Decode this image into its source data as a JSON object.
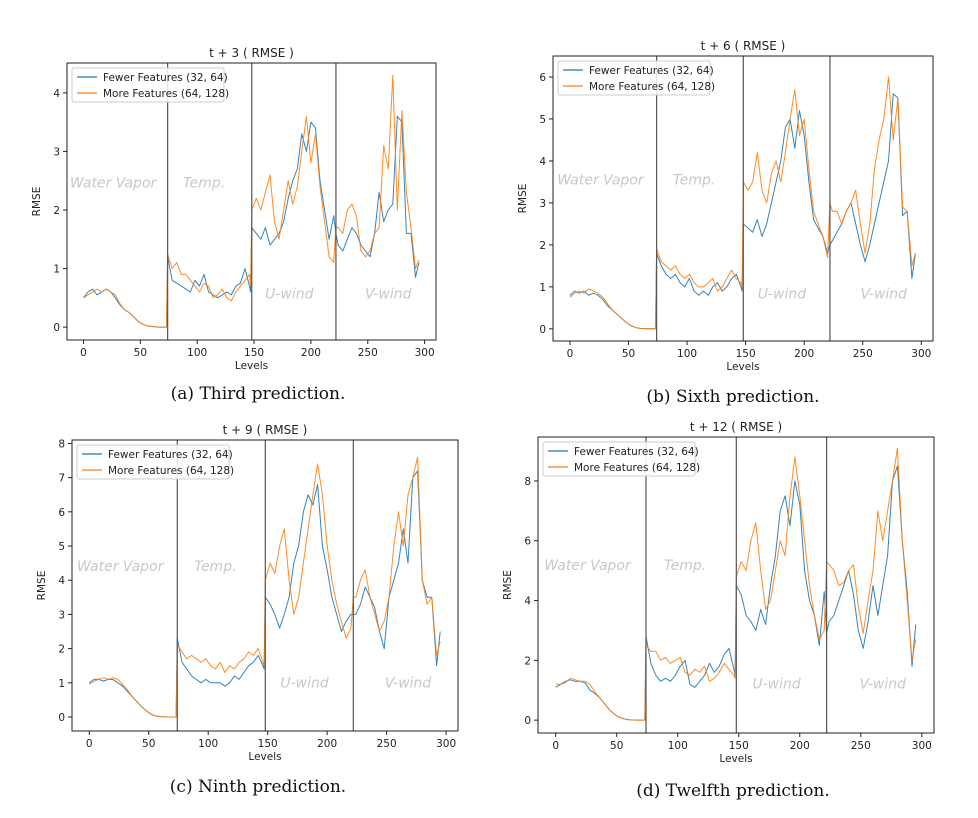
{
  "colors": {
    "fewer": "#1f77b4",
    "more": "#ff7f0e",
    "divider": "#555555",
    "region_label": "#c8c8c8"
  },
  "chart_data": [
    {
      "type": "line",
      "title": "t + 3 ( RMSE )",
      "caption": "(a) Third prediction.",
      "xlabel": "Levels",
      "ylabel": "RMSE",
      "xlim": [
        -14.5,
        310
      ],
      "ylim": [
        -0.22,
        4.51
      ],
      "xticks": [
        0,
        50,
        100,
        150,
        200,
        250,
        300
      ],
      "yticks": [
        0,
        1,
        2,
        3,
        4
      ],
      "grid": false,
      "legend_position": "top-left",
      "dividers": [
        74,
        148,
        222
      ],
      "regions": [
        {
          "label": "Water Vapor",
          "x": 26,
          "row": "upper"
        },
        {
          "label": "Temp.",
          "x": 106,
          "row": "upper"
        },
        {
          "label": "U-wind",
          "x": 181,
          "row": "lower"
        },
        {
          "label": "V-wind",
          "x": 268,
          "row": "lower"
        }
      ],
      "x": [
        0,
        4,
        8,
        12,
        16,
        20,
        24,
        28,
        32,
        36,
        40,
        44,
        48,
        52,
        56,
        60,
        66,
        73,
        74,
        78,
        82,
        86,
        90,
        94,
        98,
        102,
        106,
        110,
        114,
        118,
        122,
        126,
        130,
        134,
        138,
        142,
        146,
        147,
        148,
        152,
        156,
        160,
        164,
        168,
        172,
        176,
        180,
        184,
        188,
        192,
        196,
        200,
        204,
        208,
        212,
        216,
        220,
        222,
        224,
        228,
        232,
        236,
        240,
        244,
        248,
        252,
        256,
        260,
        264,
        268,
        272,
        276,
        280,
        284,
        288,
        292,
        295
      ],
      "series": [
        {
          "name": "Fewer Features (32, 64)",
          "color": "#1f77b4",
          "values": [
            0.5,
            0.6,
            0.65,
            0.55,
            0.6,
            0.65,
            0.6,
            0.5,
            0.38,
            0.3,
            0.25,
            0.18,
            0.1,
            0.05,
            0.02,
            0.01,
            0,
            0,
            1.2,
            0.8,
            0.75,
            0.7,
            0.65,
            0.6,
            0.8,
            0.7,
            0.9,
            0.6,
            0.55,
            0.5,
            0.55,
            0.6,
            0.55,
            0.7,
            0.75,
            1.0,
            0.7,
            0.6,
            1.7,
            1.6,
            1.5,
            1.7,
            1.4,
            1.5,
            1.6,
            1.8,
            2.2,
            2.5,
            2.7,
            3.3,
            3.0,
            3.5,
            3.4,
            2.5,
            2.0,
            1.5,
            1.9,
            1.6,
            1.4,
            1.3,
            1.5,
            1.7,
            1.6,
            1.4,
            1.3,
            1.2,
            1.6,
            2.3,
            1.8,
            2.0,
            2.1,
            3.6,
            3.5,
            1.6,
            1.6,
            0.85,
            1.1
          ]
        },
        {
          "name": "More Features (64, 128)",
          "color": "#ff7f0e",
          "values": [
            0.5,
            0.55,
            0.6,
            0.65,
            0.6,
            0.65,
            0.6,
            0.55,
            0.4,
            0.3,
            0.25,
            0.18,
            0.1,
            0.05,
            0.02,
            0.01,
            0,
            0,
            1.25,
            1.0,
            1.1,
            0.9,
            0.9,
            0.8,
            0.7,
            0.6,
            0.75,
            0.7,
            0.5,
            0.55,
            0.65,
            0.5,
            0.45,
            0.6,
            0.7,
            0.8,
            0.9,
            0.7,
            2.0,
            2.2,
            2.0,
            2.3,
            2.6,
            1.8,
            1.5,
            2.0,
            2.5,
            2.1,
            2.4,
            3.0,
            3.6,
            2.8,
            3.3,
            2.4,
            1.8,
            1.2,
            1.1,
            1.7,
            1.7,
            1.6,
            2.0,
            2.1,
            1.9,
            1.3,
            1.2,
            1.3,
            1.6,
            1.7,
            3.1,
            2.7,
            4.3,
            2.0,
            3.7,
            2.3,
            1.7,
            1.0,
            1.15
          ]
        }
      ]
    },
    {
      "type": "line",
      "title": "t + 6 ( RMSE )",
      "caption": "(b) Sixth prediction.",
      "xlabel": "Levels",
      "ylabel": "RMSE",
      "xlim": [
        -14.5,
        310
      ],
      "ylim": [
        -0.29,
        6.5
      ],
      "xticks": [
        0,
        50,
        100,
        150,
        200,
        250,
        300
      ],
      "yticks": [
        0,
        1,
        2,
        3,
        4,
        5,
        6
      ],
      "grid": false,
      "legend_position": "top-left",
      "dividers": [
        74,
        148,
        222
      ],
      "regions": [
        {
          "label": "Water Vapor",
          "x": 26,
          "row": "upper"
        },
        {
          "label": "Temp.",
          "x": 106,
          "row": "upper"
        },
        {
          "label": "U-wind",
          "x": 181,
          "row": "lower"
        },
        {
          "label": "V-wind",
          "x": 268,
          "row": "lower"
        }
      ],
      "x": [
        0,
        4,
        8,
        12,
        16,
        20,
        24,
        28,
        32,
        36,
        40,
        44,
        48,
        52,
        56,
        60,
        66,
        73,
        74,
        78,
        82,
        86,
        90,
        94,
        98,
        102,
        106,
        110,
        114,
        118,
        122,
        126,
        130,
        134,
        138,
        142,
        146,
        147,
        148,
        152,
        156,
        160,
        164,
        168,
        172,
        176,
        180,
        184,
        188,
        192,
        196,
        200,
        204,
        208,
        212,
        216,
        220,
        222,
        224,
        228,
        232,
        236,
        240,
        244,
        248,
        252,
        256,
        260,
        264,
        268,
        272,
        276,
        280,
        284,
        288,
        292,
        295
      ],
      "series": [
        {
          "name": "Fewer Features (32, 64)",
          "color": "#1f77b4",
          "values": [
            0.8,
            0.9,
            0.85,
            0.9,
            0.8,
            0.85,
            0.8,
            0.7,
            0.55,
            0.45,
            0.35,
            0.25,
            0.15,
            0.08,
            0.03,
            0.01,
            0,
            0,
            1.8,
            1.5,
            1.3,
            1.2,
            1.3,
            1.1,
            1.0,
            1.2,
            0.9,
            0.8,
            0.9,
            0.8,
            1.0,
            1.1,
            0.9,
            1.0,
            1.2,
            1.3,
            1.0,
            0.9,
            2.5,
            2.4,
            2.3,
            2.6,
            2.2,
            2.5,
            3.0,
            3.5,
            4.0,
            4.8,
            5.0,
            4.3,
            5.2,
            4.6,
            3.5,
            2.6,
            2.4,
            2.2,
            1.8,
            2.0,
            2.1,
            2.3,
            2.5,
            2.8,
            3.0,
            2.5,
            2.0,
            1.6,
            2.0,
            2.5,
            3.0,
            3.5,
            4.0,
            5.6,
            5.5,
            2.7,
            2.8,
            1.2,
            1.8
          ]
        },
        {
          "name": "More Features (64, 128)",
          "color": "#ff7f0e",
          "values": [
            0.75,
            0.85,
            0.9,
            0.85,
            0.95,
            0.9,
            0.85,
            0.75,
            0.6,
            0.45,
            0.35,
            0.25,
            0.15,
            0.08,
            0.03,
            0.01,
            0,
            0,
            1.9,
            1.6,
            1.5,
            1.4,
            1.5,
            1.3,
            1.2,
            1.3,
            1.1,
            1.0,
            1.0,
            1.1,
            1.2,
            0.9,
            1.0,
            1.2,
            1.4,
            1.2,
            1.1,
            1.0,
            3.5,
            3.3,
            3.5,
            4.2,
            3.3,
            3.0,
            3.7,
            4.0,
            3.5,
            4.2,
            5.0,
            5.7,
            4.6,
            5.0,
            3.8,
            2.8,
            2.5,
            2.2,
            1.7,
            3.0,
            2.8,
            2.8,
            2.5,
            2.8,
            3.0,
            3.3,
            2.5,
            1.8,
            2.5,
            3.8,
            4.5,
            5.0,
            6.0,
            4.5,
            5.5,
            2.9,
            2.8,
            1.5,
            1.8
          ]
        }
      ]
    },
    {
      "type": "line",
      "title": "t + 9 ( RMSE )",
      "caption": "(c) Ninth prediction.",
      "xlabel": "Levels",
      "ylabel": "RMSE",
      "xlim": [
        -14.5,
        310
      ],
      "ylim": [
        -0.41,
        8.1
      ],
      "xticks": [
        0,
        50,
        100,
        150,
        200,
        250,
        300
      ],
      "yticks": [
        0,
        1,
        2,
        3,
        4,
        5,
        6,
        7,
        8
      ],
      "grid": false,
      "legend_position": "top-left",
      "dividers": [
        74,
        148,
        222
      ],
      "regions": [
        {
          "label": "Water Vapor",
          "x": 26,
          "row": "upper"
        },
        {
          "label": "Temp.",
          "x": 106,
          "row": "upper"
        },
        {
          "label": "U-wind",
          "x": 181,
          "row": "lower"
        },
        {
          "label": "V-wind",
          "x": 268,
          "row": "lower"
        }
      ],
      "x": [
        0,
        4,
        8,
        12,
        16,
        20,
        24,
        28,
        32,
        36,
        40,
        44,
        48,
        52,
        56,
        60,
        66,
        73,
        74,
        78,
        82,
        86,
        90,
        94,
        98,
        102,
        106,
        110,
        114,
        118,
        122,
        126,
        130,
        134,
        138,
        142,
        146,
        147,
        148,
        152,
        156,
        160,
        164,
        168,
        172,
        176,
        180,
        184,
        188,
        192,
        196,
        200,
        204,
        208,
        212,
        216,
        220,
        222,
        224,
        228,
        232,
        236,
        240,
        244,
        248,
        252,
        256,
        260,
        264,
        268,
        272,
        276,
        280,
        284,
        288,
        292,
        295
      ],
      "series": [
        {
          "name": "Fewer Features (32, 64)",
          "color": "#1f77b4",
          "values": [
            1.0,
            1.1,
            1.1,
            1.05,
            1.1,
            1.1,
            1.0,
            0.9,
            0.75,
            0.6,
            0.45,
            0.3,
            0.18,
            0.08,
            0.03,
            0.01,
            0,
            0,
            2.3,
            1.6,
            1.4,
            1.2,
            1.1,
            1.0,
            1.1,
            1.0,
            1.0,
            1.0,
            0.9,
            1.0,
            1.2,
            1.1,
            1.3,
            1.5,
            1.6,
            1.8,
            1.5,
            1.4,
            3.5,
            3.3,
            3.0,
            2.6,
            3.0,
            3.5,
            4.5,
            5.0,
            6.0,
            6.5,
            6.2,
            6.8,
            5.0,
            4.3,
            3.5,
            3.0,
            2.5,
            2.8,
            3.0,
            3.0,
            3.0,
            3.3,
            3.8,
            3.5,
            3.2,
            2.5,
            2.0,
            3.5,
            4.0,
            4.5,
            5.5,
            4.5,
            7.0,
            7.2,
            4.0,
            3.5,
            3.5,
            1.5,
            2.5
          ]
        },
        {
          "name": "More Features (64, 128)",
          "color": "#ff7f0e",
          "values": [
            0.95,
            1.05,
            1.1,
            1.15,
            1.1,
            1.15,
            1.1,
            0.95,
            0.8,
            0.6,
            0.45,
            0.3,
            0.18,
            0.08,
            0.03,
            0.01,
            0,
            0,
            2.1,
            1.9,
            1.7,
            1.8,
            1.7,
            1.6,
            1.7,
            1.5,
            1.4,
            1.6,
            1.3,
            1.5,
            1.4,
            1.6,
            1.7,
            1.9,
            1.8,
            2.0,
            1.6,
            1.5,
            4.0,
            4.5,
            4.2,
            5.0,
            5.5,
            4.0,
            3.0,
            3.5,
            4.5,
            5.5,
            6.5,
            7.4,
            6.5,
            5.0,
            4.0,
            3.3,
            2.8,
            2.3,
            2.6,
            3.5,
            3.5,
            4.0,
            4.3,
            3.5,
            3.0,
            2.5,
            2.8,
            3.5,
            5.0,
            6.0,
            5.0,
            6.5,
            7.0,
            7.6,
            4.0,
            3.3,
            3.5,
            1.8,
            2.2
          ]
        }
      ]
    },
    {
      "type": "line",
      "title": "t + 12 ( RMSE )",
      "caption": "(d) Twelfth prediction.",
      "xlabel": "Levels",
      "ylabel": "RMSE",
      "xlim": [
        -14.5,
        310
      ],
      "ylim": [
        -0.43,
        9.47
      ],
      "xticks": [
        0,
        50,
        100,
        150,
        200,
        250,
        300
      ],
      "yticks": [
        0,
        2,
        4,
        6,
        8
      ],
      "grid": false,
      "legend_position": "top-left",
      "dividers": [
        74,
        148,
        222
      ],
      "regions": [
        {
          "label": "Water Vapor",
          "x": 26,
          "row": "upper"
        },
        {
          "label": "Temp.",
          "x": 106,
          "row": "upper"
        },
        {
          "label": "U-wind",
          "x": 181,
          "row": "lower"
        },
        {
          "label": "V-wind",
          "x": 268,
          "row": "lower"
        }
      ],
      "x": [
        0,
        4,
        8,
        12,
        16,
        20,
        24,
        28,
        32,
        36,
        40,
        44,
        48,
        52,
        56,
        60,
        66,
        73,
        74,
        78,
        82,
        86,
        90,
        94,
        98,
        102,
        106,
        110,
        114,
        118,
        122,
        126,
        130,
        134,
        138,
        142,
        146,
        147,
        148,
        152,
        156,
        160,
        164,
        168,
        172,
        176,
        180,
        184,
        188,
        192,
        196,
        200,
        204,
        208,
        212,
        216,
        220,
        222,
        224,
        228,
        232,
        236,
        240,
        244,
        248,
        252,
        256,
        260,
        264,
        268,
        272,
        276,
        280,
        284,
        288,
        292,
        295
      ],
      "series": [
        {
          "name": "Fewer Features (32, 64)",
          "color": "#1f77b4",
          "values": [
            1.1,
            1.2,
            1.3,
            1.35,
            1.3,
            1.3,
            1.25,
            1.0,
            0.9,
            0.75,
            0.55,
            0.35,
            0.2,
            0.1,
            0.04,
            0.01,
            0,
            0,
            2.8,
            1.9,
            1.5,
            1.3,
            1.4,
            1.3,
            1.5,
            1.8,
            2.0,
            1.2,
            1.1,
            1.3,
            1.5,
            1.9,
            1.6,
            1.8,
            2.2,
            2.4,
            1.7,
            1.5,
            4.5,
            4.2,
            3.5,
            3.3,
            3.0,
            3.7,
            3.2,
            4.5,
            5.5,
            7.0,
            7.5,
            6.5,
            8.0,
            7.2,
            5.0,
            4.0,
            3.5,
            2.5,
            4.3,
            2.9,
            3.3,
            3.5,
            4.0,
            4.5,
            5.0,
            4.2,
            3.0,
            2.4,
            3.3,
            4.5,
            3.5,
            4.5,
            5.5,
            8.0,
            8.5,
            6.0,
            4.3,
            1.8,
            3.2
          ]
        },
        {
          "name": "More Features (64, 128)",
          "color": "#ff7f0e",
          "values": [
            1.2,
            1.2,
            1.25,
            1.4,
            1.35,
            1.3,
            1.3,
            1.2,
            0.95,
            0.75,
            0.55,
            0.35,
            0.2,
            0.1,
            0.04,
            0.01,
            0,
            0,
            2.5,
            2.3,
            2.3,
            2.0,
            2.1,
            1.9,
            2.0,
            2.1,
            1.6,
            1.5,
            1.7,
            1.6,
            1.8,
            1.3,
            1.4,
            1.6,
            1.9,
            1.7,
            1.5,
            1.4,
            4.8,
            5.3,
            5.0,
            6.0,
            6.6,
            5.0,
            3.7,
            4.0,
            5.0,
            6.0,
            5.5,
            7.5,
            8.8,
            7.5,
            6.0,
            4.5,
            3.5,
            2.7,
            3.0,
            5.3,
            5.2,
            5.0,
            4.5,
            4.6,
            5.0,
            5.2,
            3.8,
            2.9,
            4.0,
            5.0,
            7.0,
            6.0,
            7.0,
            8.0,
            9.1,
            6.0,
            4.0,
            2.0,
            2.7
          ]
        }
      ]
    }
  ]
}
